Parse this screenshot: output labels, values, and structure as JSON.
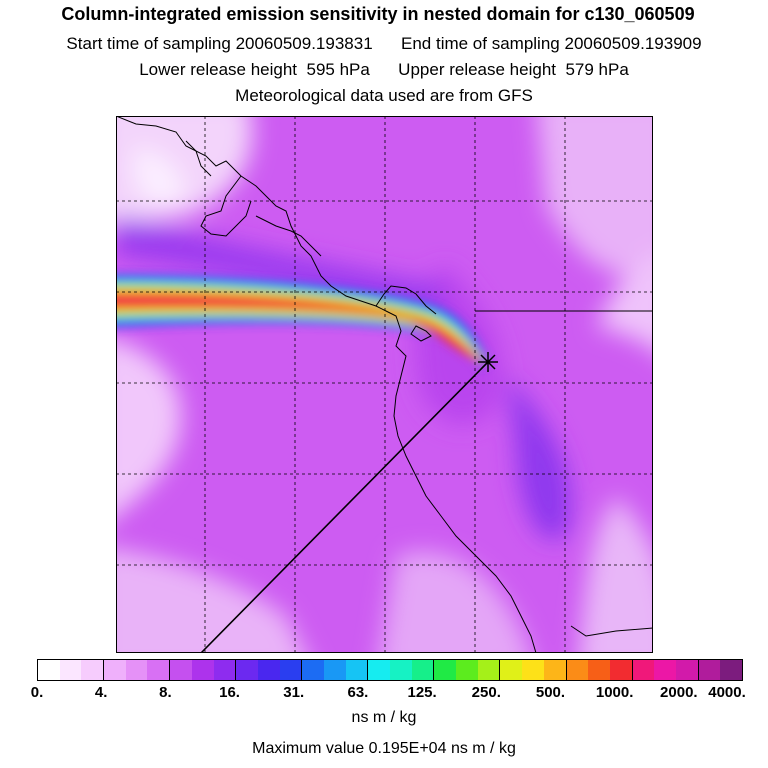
{
  "header": {
    "title": "Column-integrated emission sensitivity in nested domain for c130_060509",
    "start_label": "Start time of sampling",
    "start_value": "20060509.193831",
    "end_label": "End time of sampling",
    "end_value": "20060509.193909",
    "lower_label": "Lower release height",
    "lower_value": "595 hPa",
    "upper_label": "Upper release height",
    "upper_value": "579 hPa",
    "met_text": "Meteorological data used are from GFS"
  },
  "colorbar": {
    "colors": [
      "#ffffff",
      "#fbe6ff",
      "#f6ccfd",
      "#efb0fb",
      "#e591f7",
      "#d870f4",
      "#c550ef",
      "#ad33ec",
      "#8e2cef",
      "#6c29f0",
      "#4a27ef",
      "#2a3ef0",
      "#1c6cf3",
      "#1998f5",
      "#16c4f4",
      "#16ecf0",
      "#16f2c4",
      "#16ef8a",
      "#20ea45",
      "#5cec1e",
      "#a5f019",
      "#e0f018",
      "#fde118",
      "#fdb518",
      "#fb8c17",
      "#f75f17",
      "#f22c30",
      "#f0187a",
      "#ec17a6",
      "#d21aaa",
      "#b01c9c",
      "#7c1c7e"
    ],
    "tick_labels": [
      "0.",
      "4.",
      "8.",
      "16.",
      "31.",
      "63.",
      "125.",
      "250.",
      "500.",
      "1000.",
      "2000.",
      "4000."
    ],
    "unit": "ns m / kg"
  },
  "footer": {
    "max_label": "Maximum value",
    "max_value": "0.195E+04",
    "max_unit": "ns m / kg"
  },
  "map": {
    "release_marker": "release-point",
    "plume_direction": "west"
  }
}
